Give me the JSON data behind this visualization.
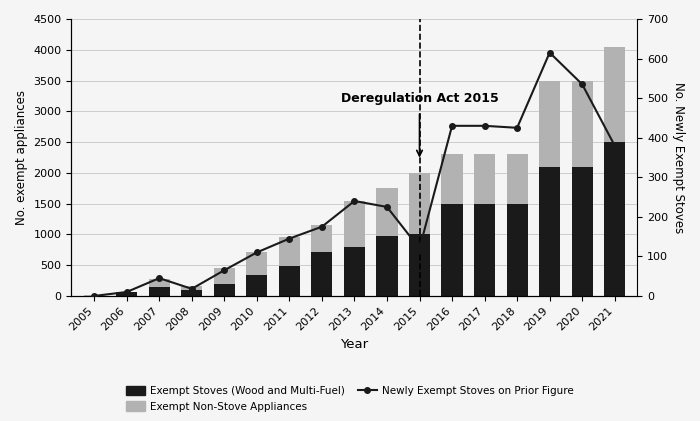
{
  "years": [
    2005,
    2006,
    2007,
    2008,
    2009,
    2010,
    2011,
    2012,
    2013,
    2014,
    2015,
    2016,
    2017,
    2018,
    2019,
    2020,
    2021
  ],
  "stoves": [
    5,
    60,
    150,
    100,
    190,
    340,
    480,
    720,
    800,
    980,
    1000,
    1500,
    1500,
    1500,
    2100,
    2100,
    2500
  ],
  "non_stoves": [
    5,
    10,
    130,
    60,
    270,
    380,
    480,
    430,
    750,
    780,
    1000,
    800,
    800,
    800,
    1400,
    1400,
    1550
  ],
  "line_values": [
    0,
    10,
    45,
    18,
    65,
    110,
    145,
    175,
    240,
    225,
    120,
    430,
    430,
    425,
    615,
    535,
    380
  ],
  "title": "Deregulation Act 2015",
  "xlabel": "Year",
  "ylabel_left": "No. exempt appliances",
  "ylabel_right": "No. Newly Exempt Stoves",
  "ylim_left": [
    0,
    4500
  ],
  "ylim_right": [
    0,
    700
  ],
  "yticks_left": [
    0,
    500,
    1000,
    1500,
    2000,
    2500,
    3000,
    3500,
    4000,
    4500
  ],
  "yticks_right": [
    0,
    100,
    200,
    300,
    400,
    500,
    600,
    700
  ],
  "stoves_color": "#1a1a1a",
  "non_stoves_color": "#b2b2b2",
  "line_color": "#1a1a1a",
  "background_color": "#f5f5f5",
  "deregulation_year": 2015,
  "legend_labels": [
    "Exempt Stoves (Wood and Multi-Fuel)",
    "Exempt Non-Stove Appliances",
    "Newly Exempt Stoves on Prior Figure"
  ]
}
